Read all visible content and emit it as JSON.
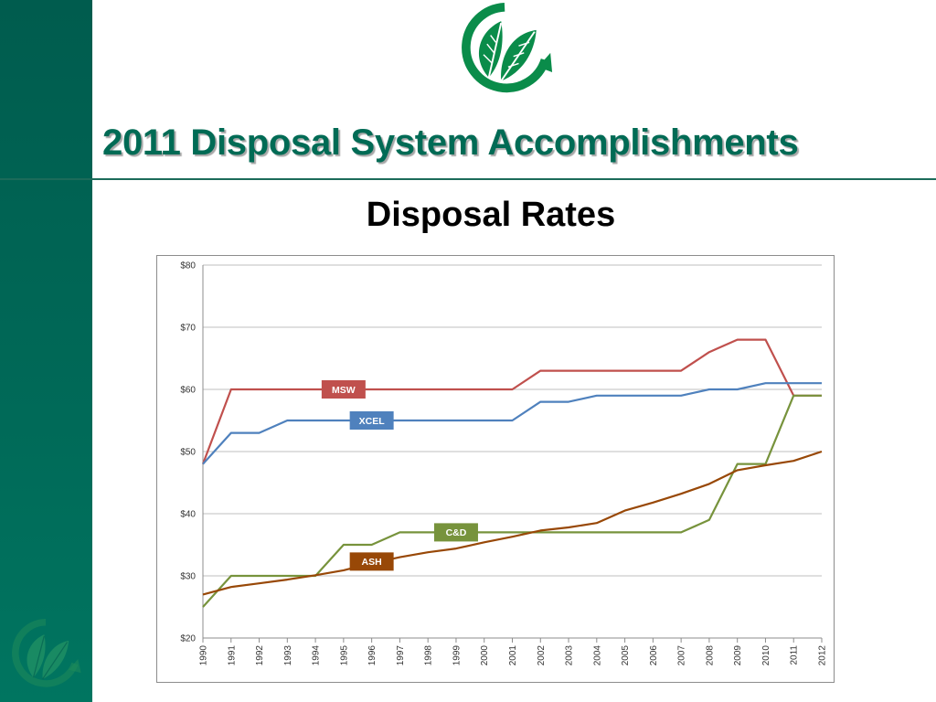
{
  "slide": {
    "title": "2011 Disposal System Accomplishments",
    "subtitle": "Disposal Rates"
  },
  "colors": {
    "sidebar": "#006a58",
    "title": "#006b55",
    "logo_green": "#0a8c4a"
  },
  "icons": {
    "top_logo": "leaf-recycle-logo",
    "sidebar_logo": "leaf-recycle-logo"
  },
  "chart_data": {
    "type": "line",
    "x": [
      "1990",
      "1991",
      "1992",
      "1993",
      "1994",
      "1995",
      "1996",
      "1997",
      "1998",
      "1999",
      "2000",
      "2001",
      "2002",
      "2003",
      "2004",
      "2005",
      "2006",
      "2007",
      "2008",
      "2009",
      "2010",
      "2011",
      "2012"
    ],
    "ylim": [
      20,
      80
    ],
    "yticks": [
      20,
      30,
      40,
      50,
      60,
      70,
      80
    ],
    "ytick_labels": [
      "$20",
      "$30",
      "$40",
      "$50",
      "$60",
      "$70",
      "$80"
    ],
    "grid": true,
    "series": [
      {
        "name": "MSW",
        "color": "#c0504d",
        "values": [
          48,
          60,
          60,
          60,
          60,
          60,
          60,
          60,
          60,
          60,
          60,
          60,
          63,
          63,
          63,
          63,
          63,
          63,
          66,
          68,
          68,
          59,
          59
        ]
      },
      {
        "name": "XCEL",
        "color": "#4f81bd",
        "values": [
          48,
          53,
          53,
          55,
          55,
          55,
          55,
          55,
          55,
          55,
          55,
          55,
          58,
          58,
          59,
          59,
          59,
          59,
          60,
          60,
          61,
          61,
          61
        ]
      },
      {
        "name": "C&D",
        "color": "#77933c",
        "values": [
          25,
          30,
          30,
          30,
          30,
          35,
          35,
          37,
          37,
          37,
          37,
          37,
          37,
          37,
          37,
          37,
          37,
          37,
          39,
          48,
          48,
          59,
          59
        ]
      },
      {
        "name": "ASH",
        "color": "#984807",
        "values": [
          27,
          28.2,
          28.8,
          29.4,
          30.1,
          30.9,
          32,
          33,
          33.8,
          34.4,
          35.4,
          36.3,
          37.3,
          37.8,
          38.5,
          40.5,
          41.8,
          43.2,
          44.8,
          47,
          47.8,
          48.5,
          50
        ]
      }
    ],
    "series_labels": [
      {
        "series": "MSW",
        "x": "1995",
        "y": 60,
        "bg": "#c0504d"
      },
      {
        "series": "XCEL",
        "x": "1996",
        "y": 55,
        "bg": "#4f81bd"
      },
      {
        "series": "C&D",
        "x": "1999",
        "y": 37,
        "bg": "#77933c"
      },
      {
        "series": "ASH",
        "x": "1996",
        "y": 32.3,
        "bg": "#984807"
      }
    ]
  }
}
